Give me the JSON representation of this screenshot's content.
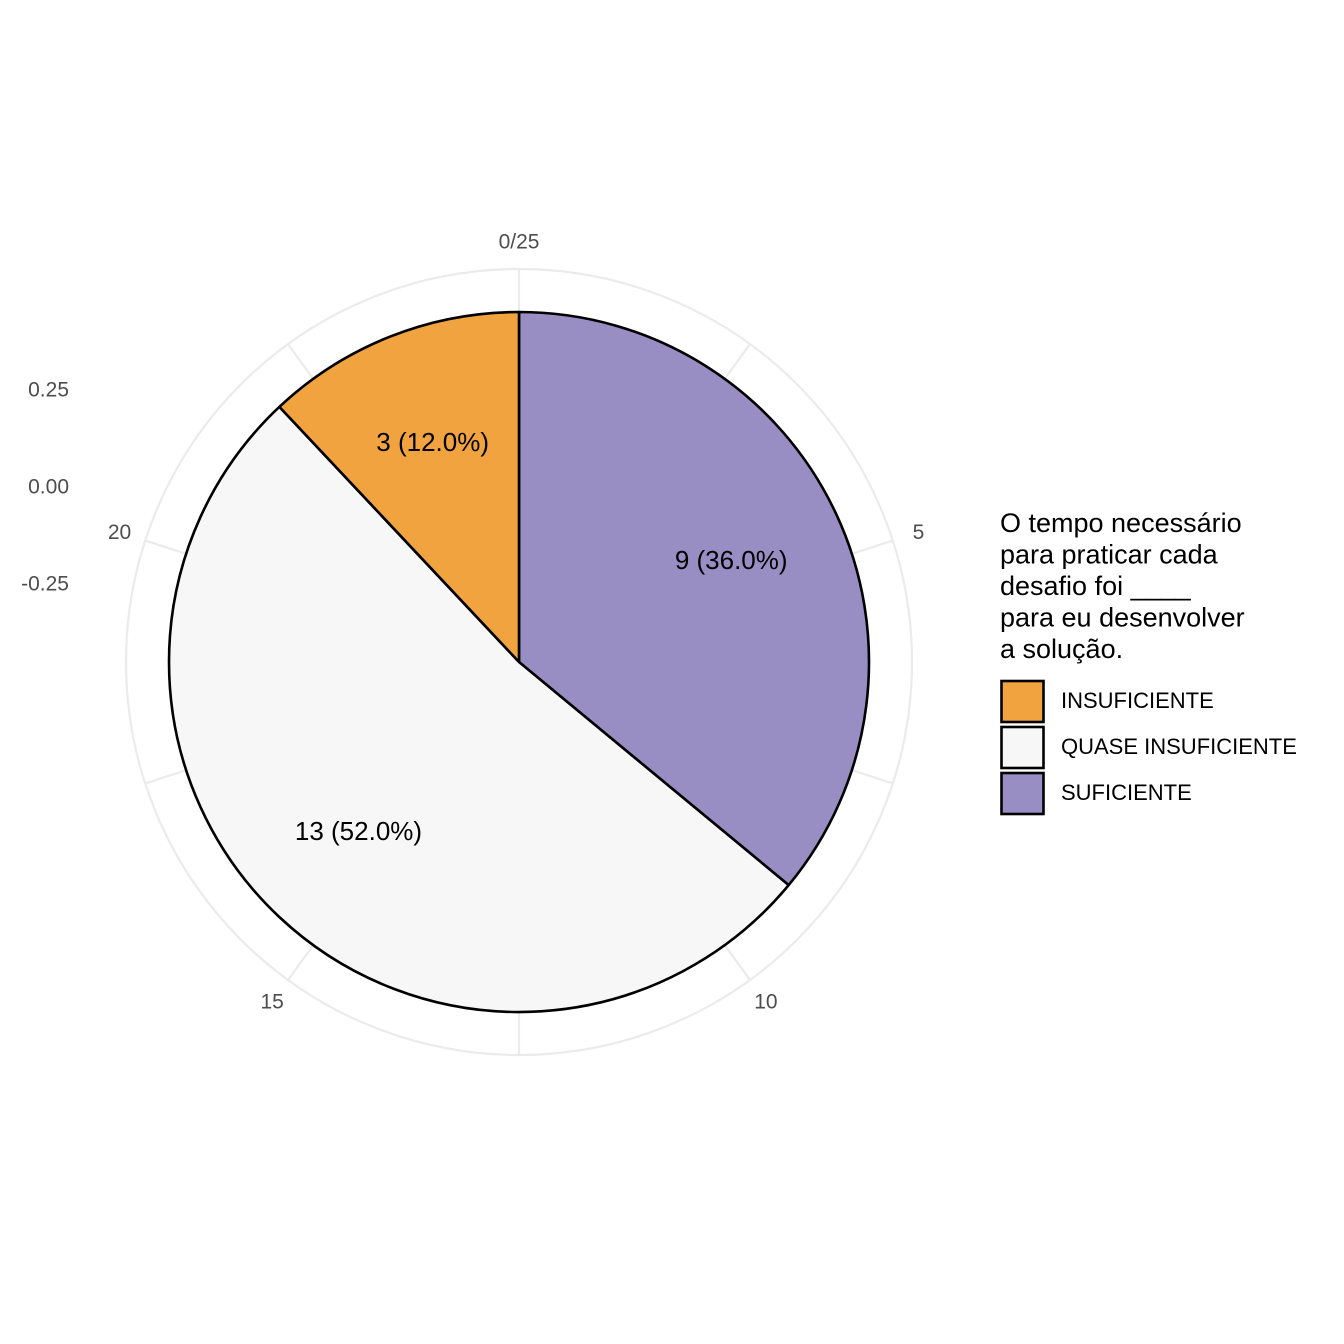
{
  "chart_data": {
    "type": "pie",
    "total": 25,
    "slices": [
      {
        "name": "SUFICIENTE",
        "value": 9,
        "label": "9 (36.0%)",
        "color": "#998EC3"
      },
      {
        "name": "QUASE INSUFICIENTE",
        "value": 13,
        "label": "13 (52.0%)",
        "color": "#F7F7F7"
      },
      {
        "name": "INSUFICIENTE",
        "value": 3,
        "label": "3 (12.0%)",
        "color": "#F1A340"
      }
    ],
    "angular_axis": {
      "ticks": [
        {
          "value": 0,
          "label": "0/25"
        },
        {
          "value": 5,
          "label": "5"
        },
        {
          "value": 10,
          "label": "10"
        },
        {
          "value": 15,
          "label": "15"
        },
        {
          "value": 20,
          "label": "20"
        }
      ],
      "minor_ticks": [
        2.5,
        7.5,
        12.5,
        17.5,
        22.5
      ]
    },
    "radial_axis": {
      "ticks": [
        "0.25",
        "0.00",
        "-0.25"
      ]
    },
    "legend": {
      "title_lines": [
        "O tempo necessário",
        "para praticar cada",
        "desafio foi ____",
        "para eu desenvolver",
        "a solução."
      ],
      "position": "right",
      "items": [
        {
          "label": "INSUFICIENTE",
          "color": "#F1A340"
        },
        {
          "label": "QUASE INSUFICIENTE",
          "color": "#F7F7F7"
        },
        {
          "label": "SUFICIENTE",
          "color": "#998EC3"
        }
      ]
    },
    "grid": true
  }
}
